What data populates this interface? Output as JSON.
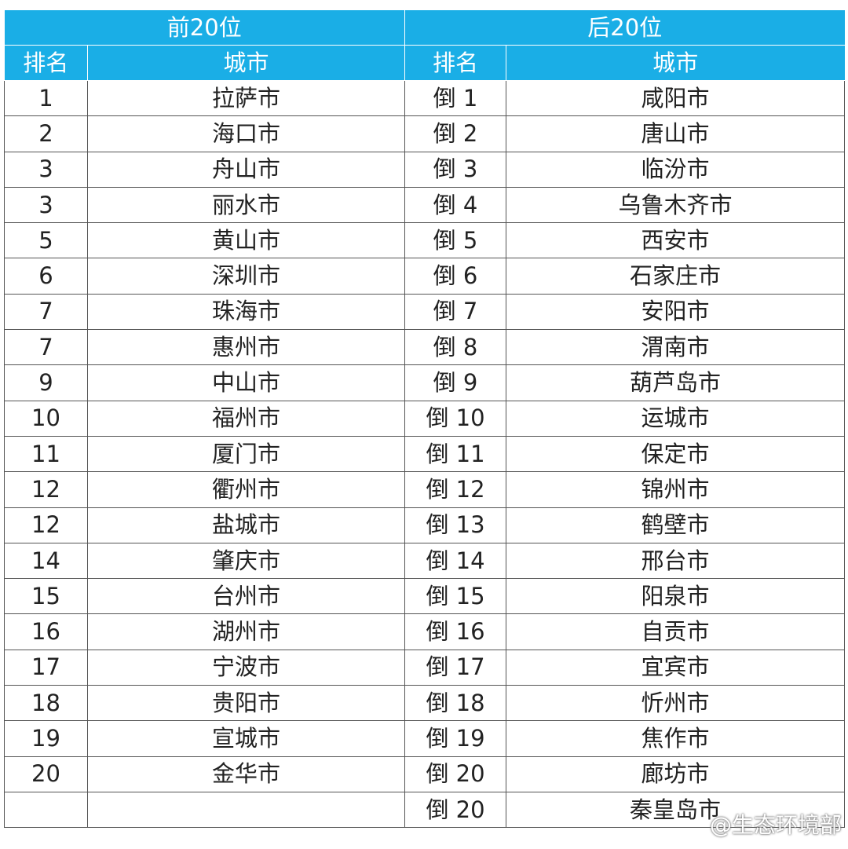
{
  "table": {
    "groups": [
      "前20位",
      "后20位"
    ],
    "header": [
      "排名",
      "城市",
      "排名",
      "城市"
    ],
    "rows": [
      [
        "1",
        "拉萨市",
        "倒 1",
        "咸阳市"
      ],
      [
        "2",
        "海口市",
        "倒 2",
        "唐山市"
      ],
      [
        "3",
        "舟山市",
        "倒 3",
        "临汾市"
      ],
      [
        "3",
        "丽水市",
        "倒 4",
        "乌鲁木齐市"
      ],
      [
        "5",
        "黄山市",
        "倒 5",
        "西安市"
      ],
      [
        "6",
        "深圳市",
        "倒 6",
        "石家庄市"
      ],
      [
        "7",
        "珠海市",
        "倒 7",
        "安阳市"
      ],
      [
        "7",
        "惠州市",
        "倒 8",
        "渭南市"
      ],
      [
        "9",
        "中山市",
        "倒 9",
        "葫芦岛市"
      ],
      [
        "10",
        "福州市",
        "倒 10",
        "运城市"
      ],
      [
        "11",
        "厦门市",
        "倒 11",
        "保定市"
      ],
      [
        "12",
        "衢州市",
        "倒 12",
        "锦州市"
      ],
      [
        "12",
        "盐城市",
        "倒 13",
        "鹤壁市"
      ],
      [
        "14",
        "肇庆市",
        "倒 14",
        "邢台市"
      ],
      [
        "15",
        "台州市",
        "倒 15",
        "阳泉市"
      ],
      [
        "16",
        "湖州市",
        "倒 16",
        "自贡市"
      ],
      [
        "17",
        "宁波市",
        "倒 17",
        "宜宾市"
      ],
      [
        "18",
        "贵阳市",
        "倒 18",
        "忻州市"
      ],
      [
        "19",
        "宣城市",
        "倒 19",
        "焦作市"
      ],
      [
        "20",
        "金华市",
        "倒 20",
        "廊坊市"
      ],
      [
        null,
        null,
        "倒 20",
        "秦皇岛市"
      ]
    ]
  },
  "watermark": "@生态环境部"
}
